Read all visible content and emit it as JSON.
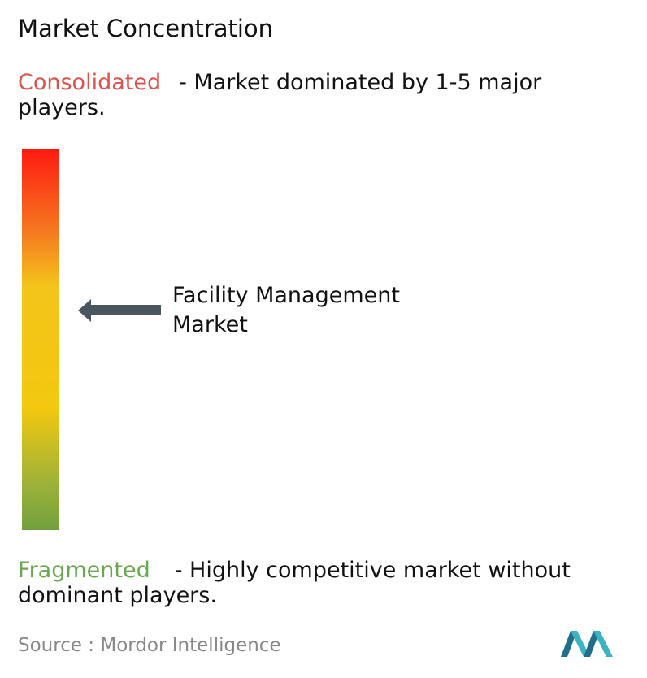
{
  "title": "Market Concentration",
  "consolidated": {
    "label": "Consolidated",
    "description": "- Market dominated by 1-5 major players."
  },
  "marker": {
    "label": "Facility Management Market"
  },
  "fragmented": {
    "label": "Fragmented",
    "description": "- Highly competitive market without dominant players."
  },
  "source": "Source :  Mordor Intelligence"
}
